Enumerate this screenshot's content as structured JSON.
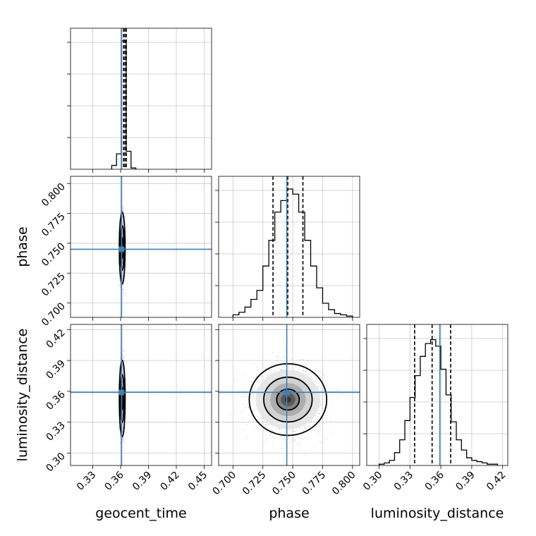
{
  "chart_data": {
    "type": "corner",
    "parameters": [
      "geocent_time",
      "phase",
      "luminosity_distance"
    ],
    "colors": {
      "truth": "#3f7fb5",
      "contour": "#000000",
      "grid": "#c8c8c8",
      "histogram": "#000000"
    },
    "grid": true,
    "truths": {
      "geocent_time": 0.361,
      "phase": 0.745,
      "luminosity_distance": 0.359
    },
    "axes": {
      "geocent_time": {
        "label": "geocent_time",
        "range": [
          0.306,
          0.458
        ],
        "ticks": [
          0.33,
          0.36,
          0.39,
          0.42,
          0.45
        ],
        "tick_labels": [
          "0.33",
          "0.36",
          "0.39",
          "0.42",
          "0.45"
        ]
      },
      "phase": {
        "label": "phase",
        "range": [
          0.688,
          0.806
        ],
        "ticks": [
          0.7,
          0.725,
          0.75,
          0.775,
          0.8
        ],
        "tick_labels": [
          "0.700",
          "0.725",
          "0.750",
          "0.775",
          "0.800"
        ]
      },
      "luminosity_distance": {
        "label": "luminosity_distance",
        "range": [
          0.288,
          0.425
        ],
        "ticks": [
          0.3,
          0.33,
          0.36,
          0.39,
          0.42
        ],
        "tick_labels": [
          "0.30",
          "0.33",
          "0.36",
          "0.39",
          "0.42"
        ]
      }
    },
    "histograms": {
      "geocent_time": {
        "bin_edges": [
          0.3504,
          0.3556,
          0.3608,
          0.366,
          0.3712,
          0.3764
        ],
        "counts": [
          0.03,
          0.12,
          1.0,
          0.14,
          0.01
        ],
        "quantiles": [
          0.3632,
          0.3647,
          0.3662
        ]
      },
      "phase": {
        "bin_edges": [
          0.7,
          0.705,
          0.71,
          0.715,
          0.72,
          0.725,
          0.73,
          0.735,
          0.74,
          0.745,
          0.75,
          0.755,
          0.76,
          0.765,
          0.77,
          0.775,
          0.78,
          0.785,
          0.79,
          0.795,
          0.8
        ],
        "counts": [
          0.02,
          0.04,
          0.08,
          0.14,
          0.21,
          0.4,
          0.6,
          0.82,
          0.91,
          1.0,
          0.96,
          0.82,
          0.6,
          0.4,
          0.23,
          0.11,
          0.06,
          0.03,
          0.02,
          0.01
        ],
        "quantiles": [
          0.7335,
          0.7458,
          0.7585
        ]
      },
      "luminosity_distance": {
        "bin_edges": [
          0.3,
          0.305,
          0.31,
          0.315,
          0.32,
          0.325,
          0.33,
          0.335,
          0.34,
          0.345,
          0.35,
          0.355,
          0.36,
          0.365,
          0.37,
          0.375,
          0.38,
          0.385,
          0.39,
          0.395,
          0.4,
          0.405,
          0.41,
          0.415
        ],
        "counts": [
          0.01,
          0.02,
          0.04,
          0.1,
          0.2,
          0.35,
          0.53,
          0.7,
          0.85,
          0.95,
          0.98,
          0.93,
          0.75,
          0.55,
          0.34,
          0.2,
          0.12,
          0.06,
          0.04,
          0.03,
          0.02,
          0.01,
          0.01
        ],
        "quantiles": [
          0.3345,
          0.3515,
          0.3695
        ]
      }
    },
    "pairs": [
      {
        "x": "geocent_time",
        "y": "phase",
        "center": [
          0.3617,
          0.746
        ],
        "sigma": [
          0.0013,
          0.0125
        ],
        "contour_levels": [
          0.7,
          1.5,
          2.4
        ]
      },
      {
        "x": "geocent_time",
        "y": "luminosity_distance",
        "center": [
          0.3617,
          0.353
        ],
        "sigma": [
          0.0013,
          0.0155
        ],
        "contour_levels": [
          0.7,
          1.5,
          2.4
        ]
      },
      {
        "x": "phase",
        "y": "luminosity_distance",
        "center": [
          0.746,
          0.352
        ],
        "sigma": [
          0.0135,
          0.0145
        ],
        "contour_levels": [
          0.7,
          1.5,
          2.4
        ]
      }
    ]
  }
}
